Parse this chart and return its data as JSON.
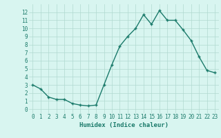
{
  "x": [
    0,
    1,
    2,
    3,
    4,
    5,
    6,
    7,
    8,
    9,
    10,
    11,
    12,
    13,
    14,
    15,
    16,
    17,
    18,
    19,
    20,
    21,
    22,
    23
  ],
  "y": [
    3.0,
    2.5,
    1.5,
    1.2,
    1.2,
    0.7,
    0.5,
    0.4,
    0.5,
    3.0,
    5.5,
    7.8,
    9.0,
    10.0,
    11.7,
    10.5,
    12.2,
    11.0,
    11.0,
    9.8,
    8.5,
    6.5,
    4.8,
    4.5
  ],
  "line_color": "#1a7a6a",
  "marker": "+",
  "marker_size": 3,
  "bg_color": "#d8f5f0",
  "grid_color": "#b0d9d0",
  "xlabel": "Humidex (Indice chaleur)",
  "xlim": [
    -0.5,
    23.5
  ],
  "ylim": [
    -0.5,
    13
  ],
  "xticks": [
    0,
    1,
    2,
    3,
    4,
    5,
    6,
    7,
    8,
    9,
    10,
    11,
    12,
    13,
    14,
    15,
    16,
    17,
    18,
    19,
    20,
    21,
    22,
    23
  ],
  "yticks": [
    0,
    1,
    2,
    3,
    4,
    5,
    6,
    7,
    8,
    9,
    10,
    11,
    12
  ],
  "tick_fontsize": 5.5,
  "xlabel_fontsize": 6.5,
  "line_width": 1.0
}
